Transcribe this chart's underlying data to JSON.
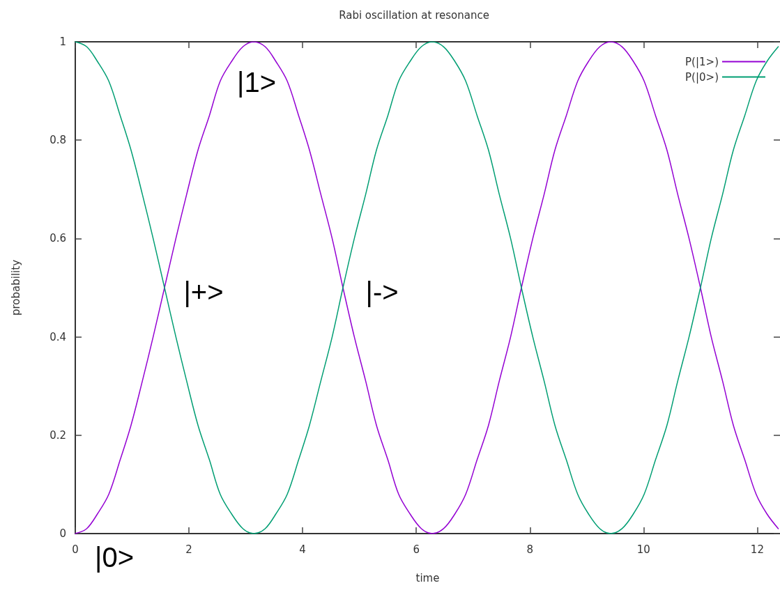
{
  "chart_data": {
    "type": "line",
    "title": "Rabi oscillation at resonance",
    "xlabel": "time",
    "ylabel": "probability",
    "x": [
      0,
      0.2,
      0.39,
      0.59,
      0.79,
      0.98,
      1.18,
      1.37,
      1.57,
      1.77,
      1.96,
      2.16,
      2.36,
      2.55,
      2.75,
      2.95,
      3.14,
      3.34,
      3.53,
      3.73,
      3.93,
      4.12,
      4.32,
      4.52,
      4.71,
      4.91,
      5.11,
      5.3,
      5.5,
      5.69,
      5.89,
      6.09,
      6.28,
      6.48,
      6.68,
      6.87,
      7.07,
      7.27,
      7.46,
      7.66,
      7.85,
      8.05,
      8.25,
      8.44,
      8.64,
      8.84,
      9.03,
      9.23,
      9.42,
      9.62,
      9.82,
      10.01,
      10.21,
      10.41,
      10.6,
      10.8,
      11,
      11.19,
      11.39,
      11.58,
      11.78,
      11.98,
      12.17,
      12.37
    ],
    "series": [
      {
        "name": "P(|1>)",
        "color": "#9400d3",
        "values": [
          0,
          0.01,
          0.04,
          0.08,
          0.15,
          0.22,
          0.31,
          0.4,
          0.5,
          0.6,
          0.69,
          0.78,
          0.85,
          0.92,
          0.96,
          0.99,
          1,
          0.99,
          0.96,
          0.92,
          0.85,
          0.78,
          0.69,
          0.6,
          0.5,
          0.4,
          0.31,
          0.22,
          0.15,
          0.08,
          0.04,
          0.01,
          0,
          0.01,
          0.04,
          0.08,
          0.15,
          0.22,
          0.31,
          0.4,
          0.5,
          0.6,
          0.69,
          0.78,
          0.85,
          0.92,
          0.96,
          0.99,
          1,
          0.99,
          0.96,
          0.92,
          0.85,
          0.78,
          0.69,
          0.6,
          0.5,
          0.4,
          0.31,
          0.22,
          0.15,
          0.08,
          0.04,
          0.01
        ]
      },
      {
        "name": "P(|0>)",
        "color": "#009e73",
        "values": [
          1,
          0.99,
          0.96,
          0.92,
          0.85,
          0.78,
          0.69,
          0.6,
          0.5,
          0.4,
          0.31,
          0.22,
          0.15,
          0.08,
          0.04,
          0.01,
          0,
          0.01,
          0.04,
          0.08,
          0.15,
          0.22,
          0.31,
          0.4,
          0.5,
          0.6,
          0.69,
          0.78,
          0.85,
          0.92,
          0.96,
          0.99,
          1,
          0.99,
          0.96,
          0.92,
          0.85,
          0.78,
          0.69,
          0.6,
          0.5,
          0.4,
          0.31,
          0.22,
          0.15,
          0.08,
          0.04,
          0.01,
          0,
          0.01,
          0.04,
          0.08,
          0.15,
          0.22,
          0.31,
          0.4,
          0.5,
          0.6,
          0.69,
          0.78,
          0.85,
          0.92,
          0.96,
          0.99
        ]
      }
    ],
    "xlim": [
      0,
      12.4
    ],
    "ylim": [
      0,
      1
    ],
    "xticks": [
      0,
      2,
      4,
      6,
      8,
      10,
      12
    ],
    "yticks": [
      0,
      0.2,
      0.4,
      0.6,
      0.8,
      1
    ],
    "grid": false,
    "legend": "top right",
    "marker": "none",
    "line_style": "solid",
    "annotations": [
      {
        "text": "|1>",
        "x": 3.14,
        "y": 1
      },
      {
        "text": "|+>",
        "x": 1.57,
        "y": 0.5
      },
      {
        "text": "|->",
        "x": 4.71,
        "y": 0.5
      },
      {
        "text": "|0>",
        "x": 0,
        "y": 0
      }
    ]
  }
}
